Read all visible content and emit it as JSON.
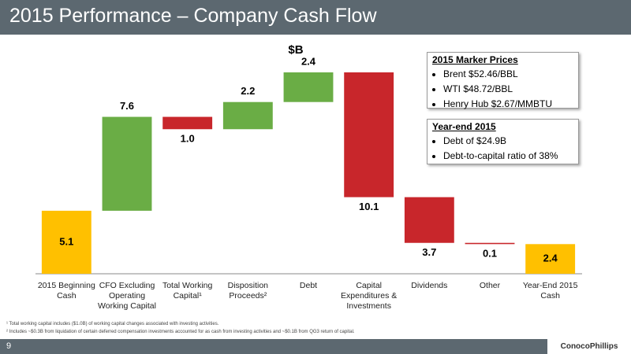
{
  "slide": {
    "title": "2015 Performance – Company Cash Flow",
    "page_number": "9",
    "logo": "ConocoPhillips",
    "footnotes": [
      "¹ Total working capital includes ($1.0B) of working capital changes associated with investing activities.",
      "² Includes ~$0.3B from liquidation of certain deferred compensation investments accounted for as cash from investing activities and ~$0.1B from QG3 return of capital."
    ],
    "boxes": [
      {
        "heading": "2015 Marker Prices",
        "items": [
          "Brent $52.46/BBL",
          "WTI $48.72/BBL",
          "Henry Hub $2.67/MMBTU"
        ]
      },
      {
        "heading": "Year-end 2015",
        "items": [
          "Debt of $24.9B",
          "Debt-to-capital ratio of 38%"
        ]
      }
    ]
  },
  "chart_data": {
    "type": "waterfall",
    "title": "$B",
    "categories": [
      "2015 Beginning Cash",
      "CFO Excluding Operating Working Capital",
      "Total Working Capital¹",
      "Disposition Proceeds²",
      "Debt",
      "Capital Expenditures & Investments",
      "Dividends",
      "Other",
      "Year-End 2015 Cash"
    ],
    "values": [
      5.1,
      7.6,
      -1.0,
      2.2,
      2.4,
      -10.1,
      -3.7,
      -0.1,
      2.4
    ],
    "value_labels": [
      "5.1",
      "7.6",
      "1.0",
      "2.2",
      "2.4",
      "10.1",
      "3.7",
      "0.1",
      "2.4"
    ],
    "is_total": [
      true,
      false,
      false,
      false,
      false,
      false,
      false,
      false,
      true
    ],
    "colors": {
      "total": "#ffc000",
      "increase": "#6aad45",
      "decrease": "#c8262b"
    }
  }
}
